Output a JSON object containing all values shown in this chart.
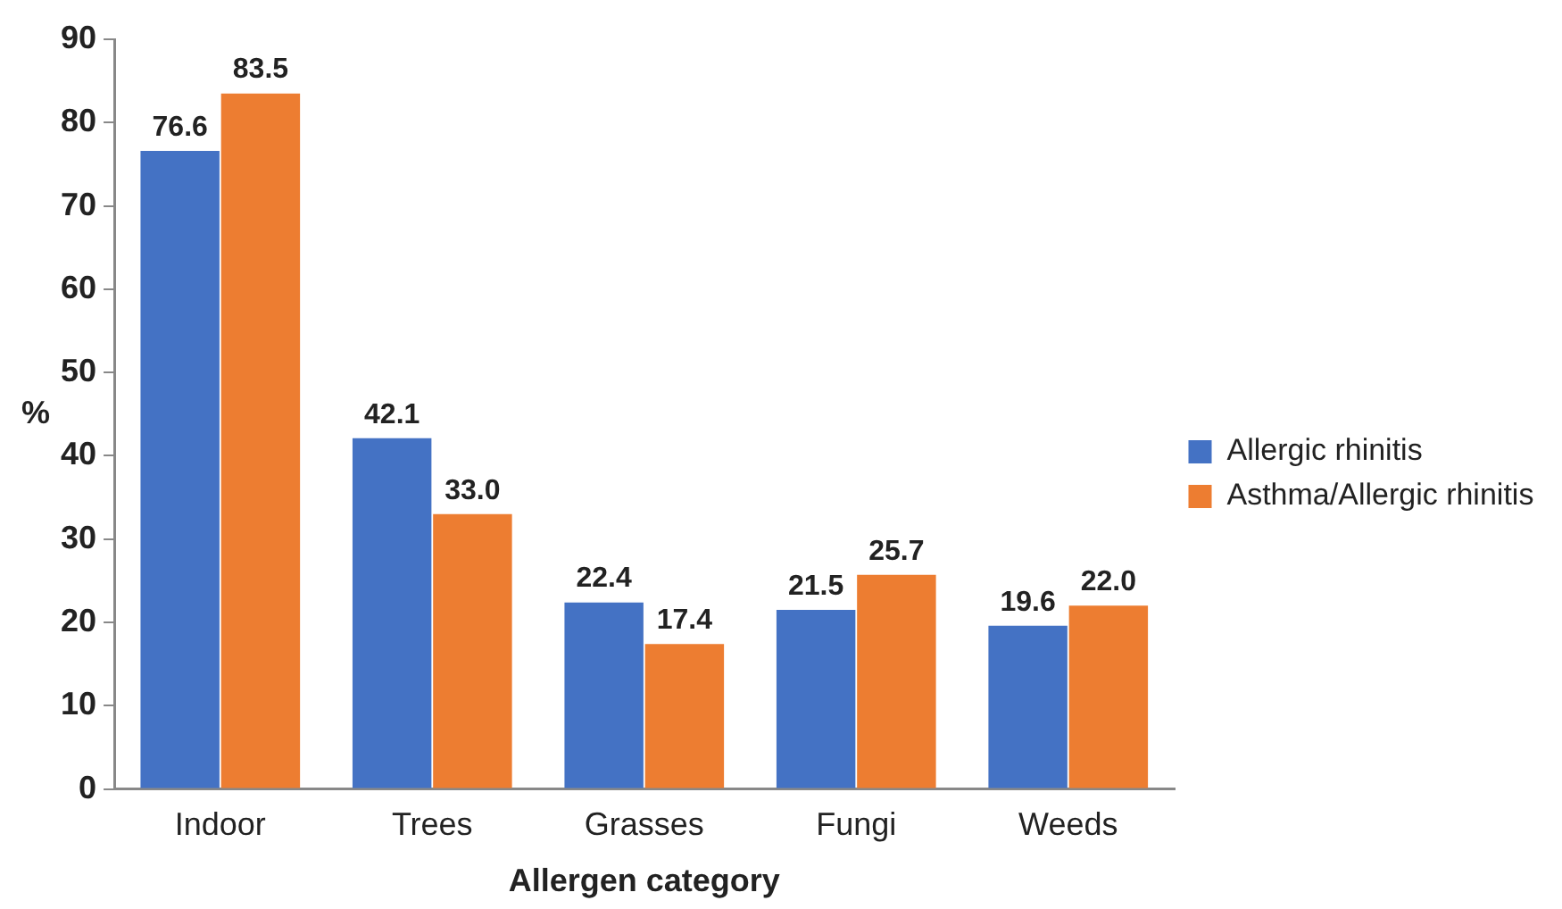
{
  "chart_data": {
    "type": "bar",
    "xlabel": "Allergen category",
    "ylabel": "%",
    "categories": [
      "Indoor",
      "Trees",
      "Grasses",
      "Fungi",
      "Weeds"
    ],
    "series": [
      {
        "name": "Allergic rhinitis",
        "color": "#4472c4",
        "values": [
          76.6,
          42.1,
          22.4,
          21.5,
          19.6
        ],
        "value_labels": [
          "76.6",
          "42.1",
          "22.4",
          "21.5",
          "19.6"
        ]
      },
      {
        "name": "Asthma/Allergic rhinitis",
        "color": "#ed7d31",
        "values": [
          83.5,
          33.0,
          17.4,
          25.7,
          22.0
        ],
        "value_labels": [
          "83.5",
          "33.0",
          "17.4",
          "25.7",
          "22.0"
        ]
      }
    ],
    "ylim": [
      0,
      90
    ],
    "yticks": [
      0,
      10,
      20,
      30,
      40,
      50,
      60,
      70,
      80,
      90
    ],
    "grid": false,
    "legend": "right"
  }
}
